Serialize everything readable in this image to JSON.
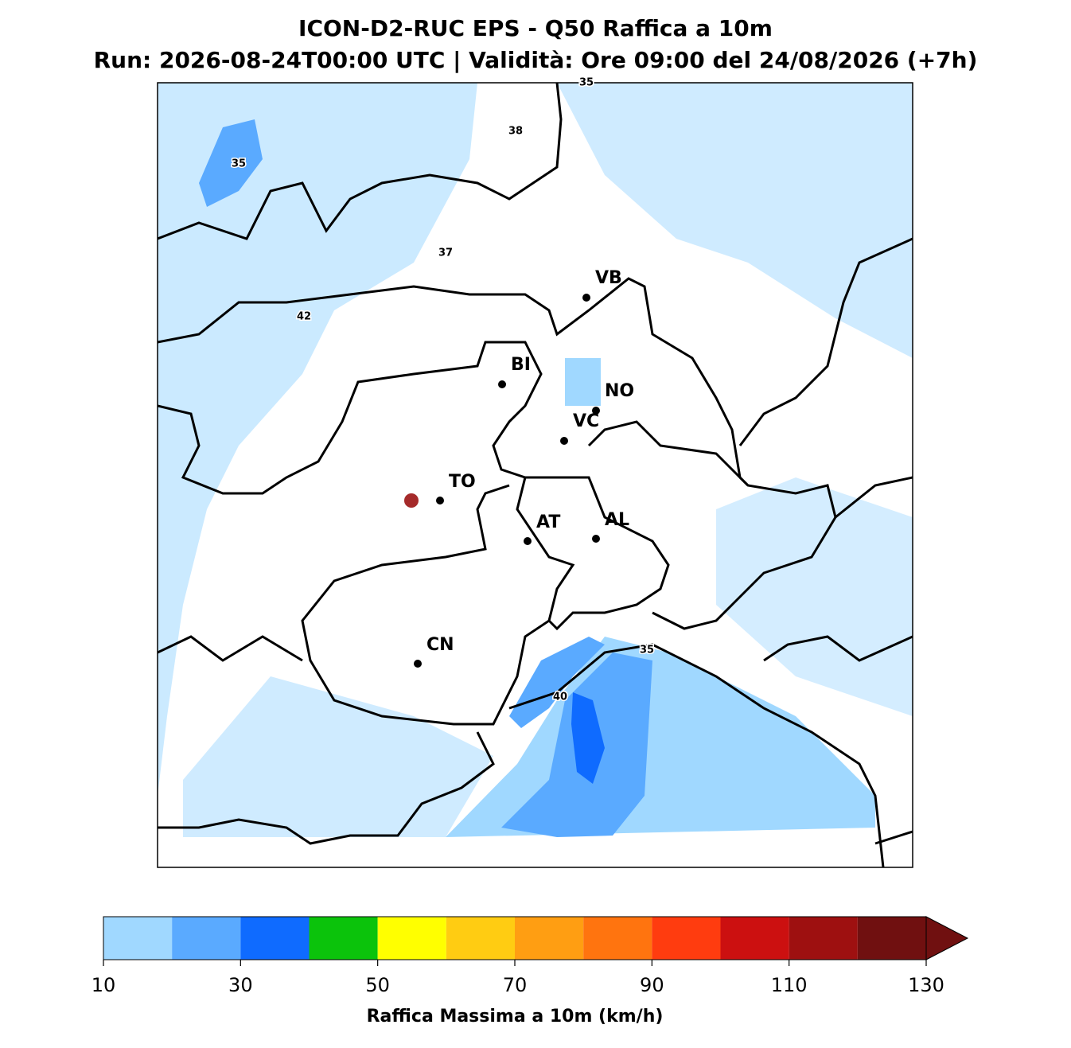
{
  "header": {
    "title": "ICON-D2-RUC EPS - Q50 Raffica a 10m",
    "subtitle": "Run: 2026-08-24T00:00 UTC | Validità: Ore 09:00 del 24/08/2026 (+7h)"
  },
  "cities": [
    "VB",
    "BI",
    "NO",
    "VC",
    "TO",
    "AT",
    "AL",
    "CN"
  ],
  "contour_labels": [
    35,
    38,
    35,
    37,
    42,
    35,
    40
  ],
  "colorbar": {
    "label": "Raffica Massima a 10m (km/h)",
    "bounds": [
      10,
      20,
      30,
      40,
      50,
      60,
      70,
      80,
      90,
      100,
      110,
      120,
      130
    ],
    "colors": [
      "#a0d8ff",
      "#5aaaff",
      "#0f6bff",
      "#0bc30b",
      "#ffff00",
      "#ffcc12",
      "#ff9e12",
      "#ff740f",
      "#ff3c0f",
      "#cc1010",
      "#9e1010",
      "#701010"
    ],
    "extend_color": "#701010",
    "lim": [
      10,
      130
    ],
    "ticks": [
      10,
      30,
      50,
      70,
      90,
      110,
      130
    ]
  }
}
